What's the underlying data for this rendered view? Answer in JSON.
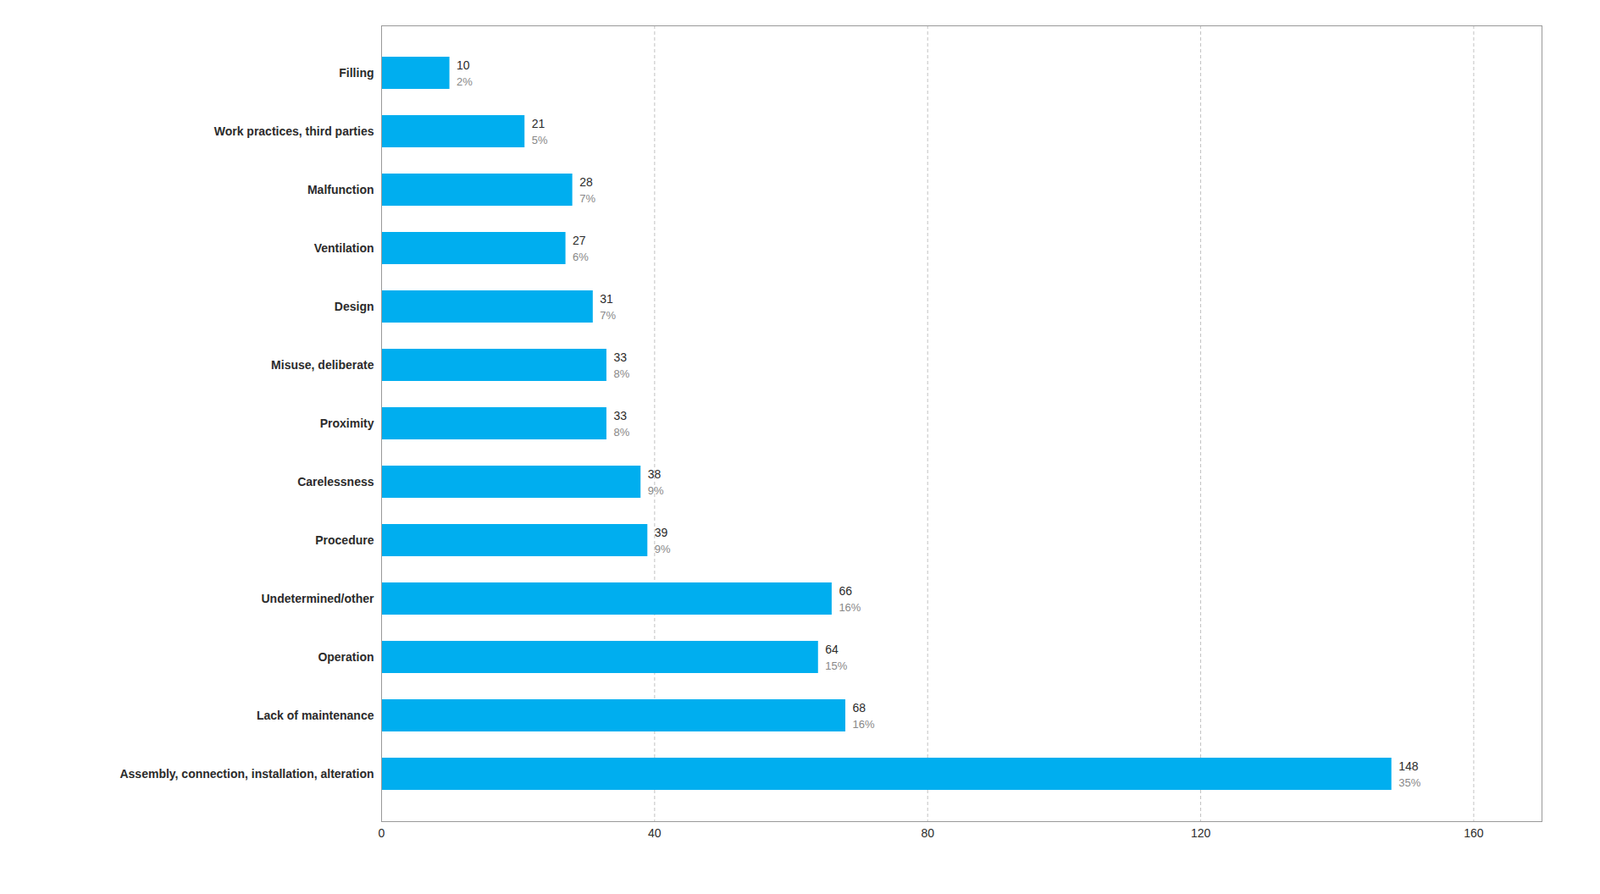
{
  "chart_data": {
    "type": "bar",
    "orientation": "horizontal",
    "categories": [
      "Assembly, connection, installation, alteration",
      "Lack of maintenance",
      "Operation",
      "Undetermined/other",
      "Procedure",
      "Carelessness",
      "Proximity",
      "Misuse, deliberate",
      "Design",
      "Ventilation",
      "Malfunction",
      "Work practices, third parties",
      "Filling"
    ],
    "values": [
      148,
      68,
      64,
      66,
      39,
      38,
      33,
      33,
      31,
      27,
      28,
      21,
      10
    ],
    "percentages": [
      "35%",
      "16%",
      "15%",
      "16%",
      "9%",
      "9%",
      "8%",
      "8%",
      "7%",
      "6%",
      "7%",
      "5%",
      "2%"
    ],
    "color": "#00AEEF",
    "xlim": [
      0,
      170
    ],
    "xticks": [
      0,
      40,
      80,
      120,
      160
    ],
    "grid": true,
    "data_labels": true
  }
}
